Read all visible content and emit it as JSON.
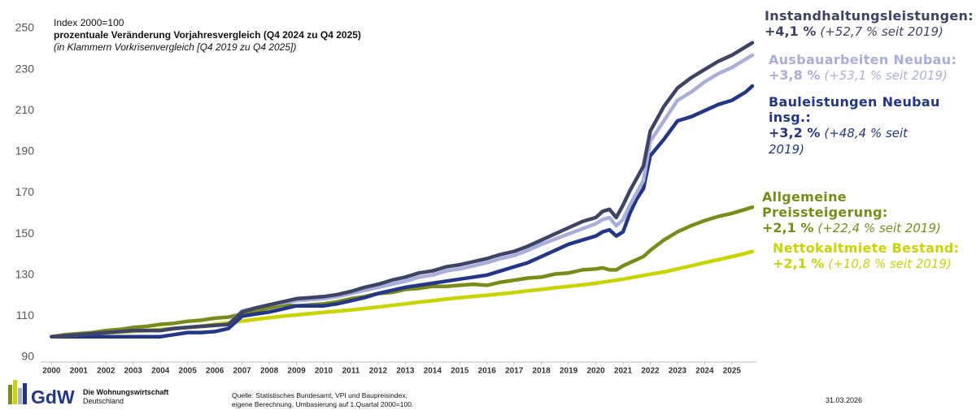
{
  "chart_data": {
    "type": "line",
    "title": "prozentuale Veränderung Vorjahresvergleich (Q4 2024 zu Q4 2025)",
    "note": "Index 2000=100",
    "subtitle": "(in Klammern Vorkrisenvergleich [Q4 2019 zu Q4 2025])",
    "x": [
      2000,
      2000.5,
      2001,
      2001.5,
      2002,
      2002.5,
      2003,
      2003.5,
      2004,
      2004.5,
      2005,
      2005.5,
      2006,
      2006.5,
      2007,
      2007.5,
      2008,
      2008.5,
      2009,
      2009.5,
      2010,
      2010.5,
      2011,
      2011.5,
      2012,
      2012.5,
      2013,
      2013.5,
      2014,
      2014.5,
      2015,
      2015.5,
      2016,
      2016.5,
      2017,
      2017.5,
      2018,
      2018.5,
      2019,
      2019.5,
      2020,
      2020.25,
      2020.5,
      2020.75,
      2021,
      2021.25,
      2021.5,
      2021.75,
      2022,
      2022.5,
      2023,
      2023.5,
      2024,
      2024.5,
      2025,
      2025.5,
      2025.75
    ],
    "xlim": [
      1999.6,
      2025.9
    ],
    "xticks": [
      2000,
      2001,
      2002,
      2003,
      2004,
      2005,
      2006,
      2007,
      2008,
      2009,
      2010,
      2011,
      2012,
      2013,
      2014,
      2015,
      2016,
      2017,
      2018,
      2019,
      2020,
      2021,
      2022,
      2023,
      2024,
      2025
    ],
    "ylim": [
      90,
      250
    ],
    "yticks": [
      90,
      110,
      130,
      150,
      170,
      190,
      210,
      230,
      250
    ],
    "grid": false,
    "series": [
      {
        "name": "Instandhaltungsleistungen:",
        "change": "+4,1 %",
        "since": "(+52,7 % seit 2019)",
        "color": "#3d4466",
        "values": [
          100,
          100.5,
          101,
          101.5,
          102,
          102.5,
          103,
          103,
          103,
          104,
          104.5,
          105,
          105.5,
          106,
          112,
          114,
          115.5,
          117,
          118.5,
          119,
          119.5,
          120.5,
          122,
          124,
          125.5,
          127.5,
          129,
          131,
          132,
          134,
          135,
          136.5,
          138,
          140,
          141.5,
          144,
          147,
          150,
          153,
          156,
          158,
          161,
          162,
          158,
          164,
          171,
          177,
          183,
          200,
          212,
          221,
          226,
          230,
          234,
          237,
          241,
          243
        ]
      },
      {
        "name": "Ausbauarbeiten Neubau:",
        "change": "+3,8 %",
        "since": "(+53,1 % seit 2019)",
        "color": "#a9aedb",
        "values": [
          100,
          100.5,
          101,
          101.5,
          102,
          102.5,
          103,
          103,
          103,
          104,
          104.5,
          105,
          105.5,
          106,
          112.5,
          114,
          115.5,
          116.5,
          117.5,
          118,
          118.5,
          119.5,
          121,
          122.5,
          124,
          125.5,
          127,
          129,
          130,
          132,
          133,
          134.5,
          136,
          138,
          139.5,
          142,
          145,
          147.5,
          150,
          152.5,
          155,
          157,
          158,
          154,
          157,
          164,
          170,
          176,
          195,
          205,
          215,
          219,
          224,
          228,
          231,
          235,
          237
        ]
      },
      {
        "name": "Bauleistungen Neubau insg.:",
        "change": "+3,2 %",
        "since": "(+48,4 % seit 2019)",
        "color": "#22378a",
        "values": [
          100,
          100,
          100,
          100,
          100,
          100,
          100,
          100,
          100,
          101,
          102,
          102,
          102.5,
          104,
          110,
          111,
          112,
          113.5,
          115,
          115,
          115,
          116,
          117.5,
          119,
          121,
          122.5,
          124,
          125,
          126,
          127,
          128,
          129,
          130,
          132,
          134,
          136,
          139,
          142,
          145,
          147,
          149,
          151,
          152,
          149,
          151,
          160,
          167,
          172,
          188,
          196,
          205,
          207,
          210,
          213,
          215,
          219,
          222
        ]
      },
      {
        "name": "Allgemeine Preissteigerung:",
        "change": "+2,1 %",
        "since": "(+22,4 % seit 2019)",
        "color": "#7a8c17",
        "values": [
          100,
          101,
          101.5,
          102,
          103,
          103.5,
          104.5,
          105,
          106,
          106.5,
          107.5,
          108,
          109,
          109.5,
          111,
          112.5,
          114,
          115.5,
          115,
          115.5,
          116,
          117,
          118.5,
          119.5,
          121,
          121.5,
          123,
          123.5,
          124.5,
          124.5,
          125,
          125.5,
          125,
          126.5,
          127.5,
          128.5,
          129,
          130.5,
          131,
          132.5,
          133,
          133.5,
          132.5,
          132.5,
          134.5,
          136,
          137.5,
          139,
          142,
          147,
          151,
          154,
          156.5,
          158.5,
          160,
          162,
          163
        ]
      },
      {
        "name": "Nettokaltmiete Bestand:",
        "change": "+2,1 %",
        "since": "(+10,8 % seit 2019)",
        "color": "#c9d400",
        "values": [
          100,
          100.3,
          100.8,
          101.3,
          101.8,
          102.2,
          102.6,
          103,
          103.5,
          104,
          104.5,
          105.2,
          106,
          106.8,
          107.6,
          108.4,
          109.2,
          110,
          110.6,
          111.2,
          111.8,
          112.4,
          113,
          113.7,
          114.4,
          115.2,
          116,
          116.8,
          117.5,
          118.3,
          119,
          119.6,
          120.2,
          120.8,
          121.5,
          122.3,
          123,
          123.8,
          124.5,
          125.2,
          126,
          126.5,
          127,
          127.5,
          128,
          128.6,
          129.2,
          129.8,
          130.4,
          131.5,
          133,
          134.5,
          136,
          137.5,
          139,
          140.5,
          141.5
        ]
      }
    ]
  },
  "footer": {
    "brand": "GdW",
    "brand_line1": "Die Wohnungswirtschaft",
    "brand_line2": "Deutschland",
    "source_line1": "Quelle: Statistisches Bundesamt, VPI und Baupreisindex,",
    "source_line2": "eigene Berechnung, Umbasierung auf 1.Quartal 2000=100.",
    "date": "31.03.2026"
  }
}
